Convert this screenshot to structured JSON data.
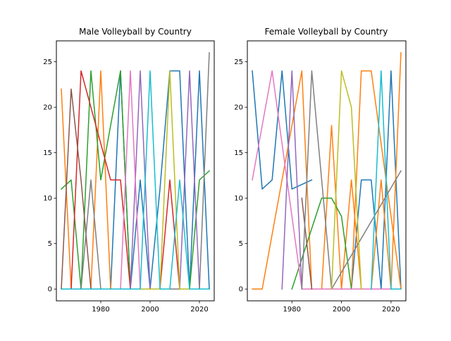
{
  "chart_data": [
    {
      "type": "line",
      "title": "Male Volleyball by Country",
      "xlabel": "",
      "ylabel": "",
      "xlim": [
        1962,
        2026
      ],
      "ylim": [
        -1.3,
        27.3
      ],
      "xticks": [
        1980,
        2000,
        2020
      ],
      "yticks": [
        0,
        5,
        10,
        15,
        20,
        25
      ],
      "grid": false,
      "series": [
        {
          "color": "#1f77b4",
          "x": [
            1964,
            1984,
            1988,
            1992,
            1996,
            2000,
            2004,
            2008,
            2012,
            2016,
            2020,
            2024
          ],
          "y": [
            0,
            0,
            24,
            0,
            12,
            0,
            11,
            24,
            24,
            0,
            24,
            0
          ]
        },
        {
          "color": "#ff7f0e",
          "x": [
            1964,
            1968,
            1972,
            1976,
            1980,
            1984,
            1988
          ],
          "y": [
            22,
            0,
            0,
            0,
            24,
            0,
            0
          ]
        },
        {
          "color": "#2ca02c",
          "x": [
            1964,
            1968,
            1972,
            1976,
            1980,
            1988,
            1992,
            2016,
            2020,
            2024
          ],
          "y": [
            11,
            12,
            0,
            24,
            12,
            24,
            0,
            0,
            12,
            13
          ]
        },
        {
          "color": "#d62728",
          "x": [
            1964,
            1968,
            1972,
            1984,
            1988,
            1992,
            2004,
            2008,
            2012,
            2024
          ],
          "y": [
            0,
            0,
            24,
            12,
            12,
            0,
            0,
            12,
            0,
            0
          ]
        },
        {
          "color": "#9467bd",
          "x": [
            1964,
            1992,
            1996,
            2000,
            2012,
            2016,
            2020,
            2024
          ],
          "y": [
            0,
            0,
            24,
            0,
            0,
            24,
            0,
            0
          ]
        },
        {
          "color": "#8c564b",
          "x": [
            1964,
            1968,
            1972,
            1976,
            2024
          ],
          "y": [
            0,
            22,
            12,
            0,
            0
          ]
        },
        {
          "color": "#e377c2",
          "x": [
            1964,
            1988,
            1992,
            1996,
            2024
          ],
          "y": [
            0,
            0,
            24,
            0,
            0
          ]
        },
        {
          "color": "#7f7f7f",
          "x": [
            1964,
            1972,
            1976,
            1980,
            2020,
            2024
          ],
          "y": [
            0,
            0,
            12,
            0,
            0,
            26
          ]
        },
        {
          "color": "#bcbd22",
          "x": [
            1964,
            2004,
            2008,
            2012,
            2024
          ],
          "y": [
            0,
            0,
            24,
            0,
            0
          ]
        },
        {
          "color": "#17becf",
          "x": [
            1964,
            1996,
            2000,
            2004,
            2008,
            2012,
            2016,
            2024
          ],
          "y": [
            0,
            0,
            24,
            0,
            0,
            12,
            0,
            0
          ]
        }
      ]
    },
    {
      "type": "line",
      "title": "Female Volleyball by Country",
      "xlabel": "",
      "ylabel": "",
      "xlim": [
        1962,
        2026
      ],
      "ylim": [
        -1.3,
        27.3
      ],
      "xticks": [
        1980,
        2000,
        2020
      ],
      "yticks": [
        0,
        5,
        10,
        15,
        20,
        25
      ],
      "grid": false,
      "series": [
        {
          "color": "#1f77b4",
          "x": [
            1964,
            1968,
            1972,
            1976,
            1980,
            1988
          ],
          "y": [
            24,
            11,
            12,
            24,
            11,
            12
          ]
        },
        {
          "color": "#1f77b4",
          "x": [
            2004,
            2008,
            2012,
            2016,
            2020,
            2024
          ],
          "y": [
            0,
            12,
            12,
            0,
            24,
            0
          ]
        },
        {
          "color": "#ff7f0e",
          "x": [
            1964,
            1968,
            1984,
            1988,
            1992,
            1996,
            2000,
            2004,
            2008,
            2012,
            2016,
            2020,
            2024
          ],
          "y": [
            0,
            0,
            24,
            0,
            0,
            18,
            0,
            12,
            0,
            0,
            12,
            0,
            26
          ]
        },
        {
          "color": "#ff7f0e",
          "x": [
            2004,
            2008,
            2012,
            2024
          ],
          "y": [
            0,
            24,
            24,
            0
          ]
        },
        {
          "color": "#2ca02c",
          "x": [
            1980,
            1992,
            1996,
            2000,
            2004
          ],
          "y": [
            0,
            10,
            10,
            8,
            0
          ]
        },
        {
          "color": "#e377c2",
          "x": [
            1964,
            1972,
            1984,
            2024
          ],
          "y": [
            12,
            24,
            0,
            0
          ]
        },
        {
          "color": "#9467bd",
          "x": [
            1976,
            1980,
            1984
          ],
          "y": [
            0,
            24,
            0
          ]
        },
        {
          "color": "#8c564b",
          "x": [
            1984,
            1988
          ],
          "y": [
            10,
            0
          ]
        },
        {
          "color": "#7f7f7f",
          "x": [
            1984,
            1988,
            1996,
            2024
          ],
          "y": [
            0,
            24,
            0,
            13
          ]
        },
        {
          "color": "#bcbd22",
          "x": [
            1996,
            2000,
            2004,
            2008
          ],
          "y": [
            0,
            24,
            20,
            0
          ]
        },
        {
          "color": "#17becf",
          "x": [
            2012,
            2016,
            2020,
            2024
          ],
          "y": [
            0,
            24,
            0,
            0
          ]
        }
      ]
    }
  ]
}
